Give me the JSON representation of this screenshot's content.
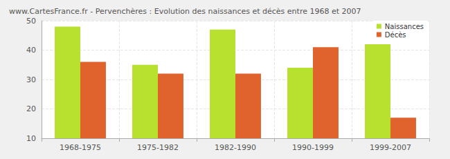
{
  "chart_data": {
    "type": "bar",
    "title": "www.CartesFrance.fr - Pervenchères : Evolution des naissances et décès entre 1968 et 2007",
    "categories": [
      "1968-1975",
      "1975-1982",
      "1982-1990",
      "1990-1999",
      "1999-2007"
    ],
    "series": [
      {
        "name": "Naissances",
        "color": "#b8e02e",
        "values": [
          48,
          35,
          47,
          34,
          42
        ]
      },
      {
        "name": "Décès",
        "color": "#e0632e",
        "values": [
          36,
          32,
          32,
          41,
          17
        ]
      }
    ],
    "ylim": [
      10,
      50
    ],
    "yticks": [
      10,
      20,
      30,
      40,
      50
    ],
    "grid": true,
    "legend": "top-right"
  }
}
